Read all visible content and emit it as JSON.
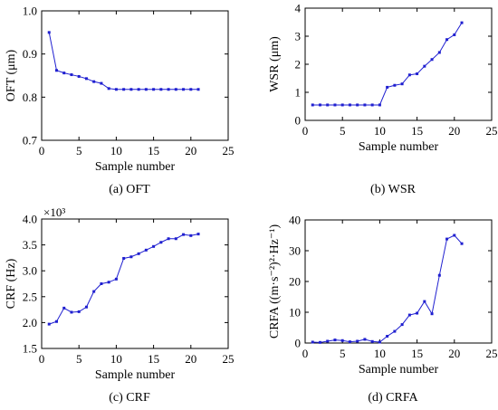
{
  "chart_data": [
    {
      "type": "line",
      "panel": "a",
      "caption": "(a) OFT",
      "xlabel": "Sample number",
      "ylabel": "OFT (μm)",
      "xlim": [
        0,
        25
      ],
      "ylim": [
        0.7,
        1.0
      ],
      "xticks": [
        "0",
        "5",
        "10",
        "15",
        "20",
        "25"
      ],
      "yticks": [
        "0.7",
        "0.8",
        "0.9",
        "1.0"
      ],
      "ytick_values": [
        0.7,
        0.8,
        0.9,
        1.0
      ],
      "multiplier": "",
      "color": "#1f1fd0",
      "x": [
        1,
        2,
        3,
        4,
        5,
        6,
        7,
        8,
        9,
        10,
        11,
        12,
        13,
        14,
        15,
        16,
        17,
        18,
        19,
        20,
        21
      ],
      "y": [
        0.95,
        0.862,
        0.856,
        0.852,
        0.848,
        0.843,
        0.836,
        0.832,
        0.82,
        0.818,
        0.818,
        0.818,
        0.818,
        0.818,
        0.818,
        0.818,
        0.818,
        0.818,
        0.818,
        0.818,
        0.818
      ]
    },
    {
      "type": "line",
      "panel": "b",
      "caption": "(b) WSR",
      "xlabel": "Sample number",
      "ylabel": "WSR (μm)",
      "xlim": [
        0,
        25
      ],
      "ylim": [
        0,
        4
      ],
      "xticks": [
        "0",
        "5",
        "10",
        "15",
        "20",
        "25"
      ],
      "yticks": [
        "0",
        "1",
        "2",
        "3",
        "4"
      ],
      "ytick_values": [
        0,
        1,
        2,
        3,
        4
      ],
      "multiplier": "",
      "color": "#1f1fd0",
      "x": [
        1,
        2,
        3,
        4,
        5,
        6,
        7,
        8,
        9,
        10,
        11,
        12,
        13,
        14,
        15,
        16,
        17,
        18,
        19,
        20,
        21
      ],
      "y": [
        0.55,
        0.55,
        0.55,
        0.55,
        0.55,
        0.55,
        0.55,
        0.55,
        0.55,
        0.55,
        1.18,
        1.25,
        1.3,
        1.62,
        1.66,
        1.93,
        2.17,
        2.42,
        2.88,
        3.05,
        3.48
      ]
    },
    {
      "type": "line",
      "panel": "c",
      "caption": "(c) CRF",
      "xlabel": "Sample number",
      "ylabel": "CRF (Hz)",
      "xlim": [
        0,
        25
      ],
      "ylim": [
        1.5,
        4.0
      ],
      "xticks": [
        "0",
        "5",
        "10",
        "15",
        "20",
        "25"
      ],
      "yticks": [
        "1.5",
        "2.0",
        "2.5",
        "3.0",
        "3.5",
        "4.0"
      ],
      "ytick_values": [
        1.5,
        2.0,
        2.5,
        3.0,
        3.5,
        4.0
      ],
      "multiplier": "×10³",
      "color": "#1f1fd0",
      "x": [
        1,
        2,
        3,
        4,
        5,
        6,
        7,
        8,
        9,
        10,
        11,
        12,
        13,
        14,
        15,
        16,
        17,
        18,
        19,
        20,
        21
      ],
      "y": [
        1.97,
        2.02,
        2.28,
        2.2,
        2.21,
        2.3,
        2.6,
        2.75,
        2.78,
        2.84,
        3.24,
        3.27,
        3.33,
        3.4,
        3.47,
        3.55,
        3.62,
        3.62,
        3.7,
        3.68,
        3.71
      ]
    },
    {
      "type": "line",
      "panel": "d",
      "caption": "(d) CRFA",
      "xlabel": "Sample number",
      "ylabel": "CRFA ((m·s⁻²)²·Hz⁻¹)",
      "xlim": [
        0,
        25
      ],
      "ylim": [
        0,
        40
      ],
      "xticks": [
        "0",
        "5",
        "10",
        "15",
        "20",
        "25"
      ],
      "yticks": [
        "0",
        "10",
        "20",
        "30",
        "40"
      ],
      "ytick_values": [
        0,
        10,
        20,
        30,
        40
      ],
      "multiplier": "",
      "color": "#1f1fd0",
      "x": [
        1,
        2,
        3,
        4,
        5,
        6,
        7,
        8,
        9,
        10,
        11,
        12,
        13,
        14,
        15,
        16,
        17,
        18,
        19,
        20,
        21
      ],
      "y": [
        0.3,
        0.2,
        0.6,
        1.0,
        0.8,
        0.4,
        0.6,
        1.2,
        0.5,
        0.3,
        2.2,
        3.8,
        6.0,
        9.1,
        9.7,
        13.5,
        9.5,
        22.0,
        33.8,
        35.0,
        32.3
      ]
    }
  ]
}
